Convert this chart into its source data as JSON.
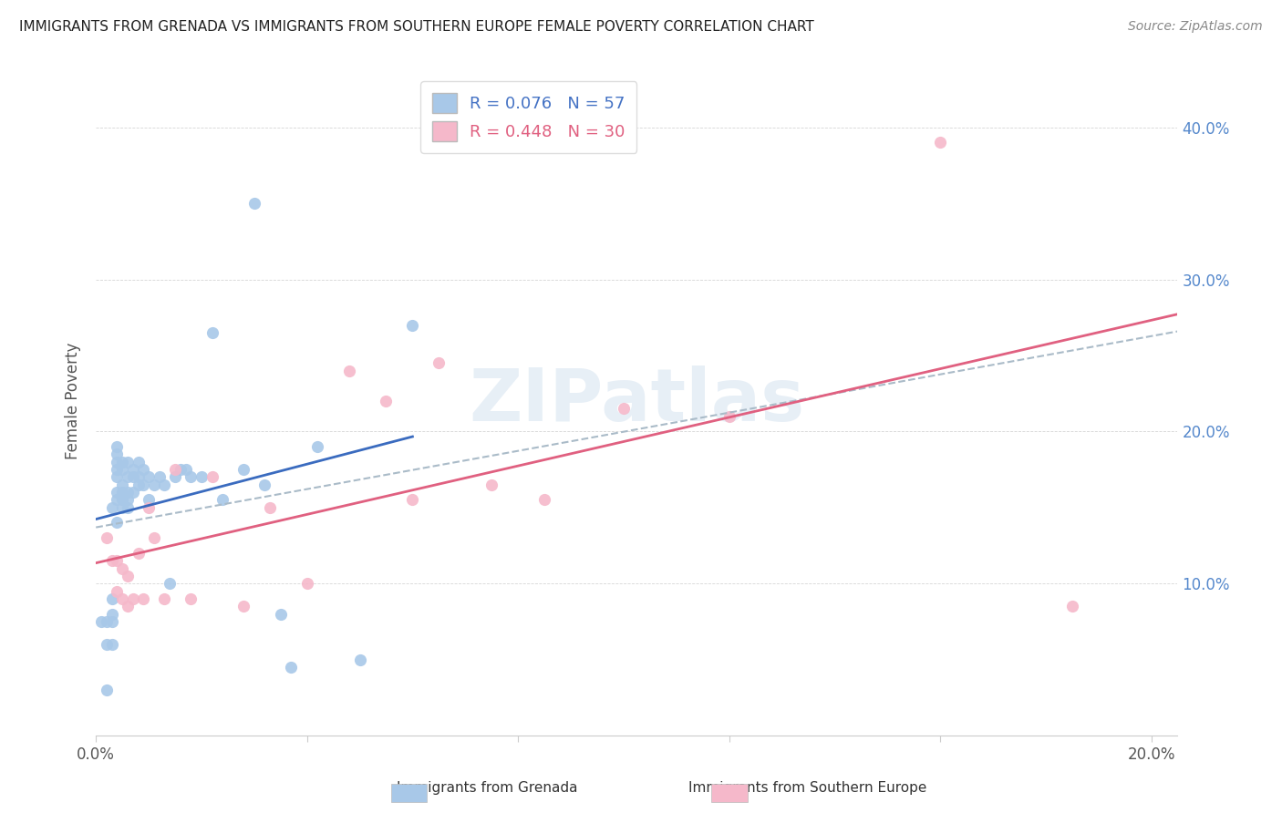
{
  "title": "IMMIGRANTS FROM GRENADA VS IMMIGRANTS FROM SOUTHERN EUROPE FEMALE POVERTY CORRELATION CHART",
  "source": "Source: ZipAtlas.com",
  "ylabel": "Female Poverty",
  "xlim": [
    0.0,
    0.205
  ],
  "ylim": [
    0.0,
    0.44
  ],
  "xticks": [
    0.0,
    0.04,
    0.08,
    0.12,
    0.16,
    0.2
  ],
  "yticks": [
    0.0,
    0.1,
    0.2,
    0.3,
    0.4
  ],
  "ytick_labels_right": [
    "",
    "10.0%",
    "20.0%",
    "30.0%",
    "40.0%"
  ],
  "grenada_R": 0.076,
  "grenada_N": 57,
  "southern_R": 0.448,
  "southern_N": 30,
  "grenada_color": "#a8c8e8",
  "southern_color": "#f5b8ca",
  "grenada_line_color": "#3a6bbf",
  "southern_line_color": "#e06080",
  "dash_line_color": "#aabbc8",
  "background_color": "#ffffff",
  "watermark": "ZIPatlas",
  "grenada_x": [
    0.001,
    0.002,
    0.002,
    0.002,
    0.003,
    0.003,
    0.003,
    0.003,
    0.003,
    0.004,
    0.004,
    0.004,
    0.004,
    0.004,
    0.004,
    0.004,
    0.004,
    0.005,
    0.005,
    0.005,
    0.005,
    0.005,
    0.005,
    0.006,
    0.006,
    0.006,
    0.006,
    0.006,
    0.007,
    0.007,
    0.007,
    0.008,
    0.008,
    0.008,
    0.009,
    0.009,
    0.01,
    0.01,
    0.011,
    0.012,
    0.013,
    0.014,
    0.015,
    0.016,
    0.017,
    0.018,
    0.02,
    0.022,
    0.024,
    0.028,
    0.03,
    0.032,
    0.035,
    0.037,
    0.042,
    0.05,
    0.06
  ],
  "grenada_y": [
    0.075,
    0.03,
    0.06,
    0.075,
    0.06,
    0.075,
    0.08,
    0.09,
    0.15,
    0.14,
    0.155,
    0.16,
    0.17,
    0.175,
    0.18,
    0.185,
    0.19,
    0.15,
    0.155,
    0.16,
    0.165,
    0.175,
    0.18,
    0.15,
    0.155,
    0.16,
    0.17,
    0.18,
    0.16,
    0.17,
    0.175,
    0.165,
    0.17,
    0.18,
    0.165,
    0.175,
    0.155,
    0.17,
    0.165,
    0.17,
    0.165,
    0.1,
    0.17,
    0.175,
    0.175,
    0.17,
    0.17,
    0.265,
    0.155,
    0.175,
    0.35,
    0.165,
    0.08,
    0.045,
    0.19,
    0.05,
    0.27
  ],
  "southern_x": [
    0.002,
    0.003,
    0.004,
    0.004,
    0.005,
    0.005,
    0.006,
    0.006,
    0.007,
    0.008,
    0.009,
    0.01,
    0.011,
    0.013,
    0.015,
    0.018,
    0.022,
    0.028,
    0.033,
    0.04,
    0.048,
    0.055,
    0.06,
    0.065,
    0.075,
    0.085,
    0.1,
    0.12,
    0.16,
    0.185
  ],
  "southern_y": [
    0.13,
    0.115,
    0.095,
    0.115,
    0.09,
    0.11,
    0.085,
    0.105,
    0.09,
    0.12,
    0.09,
    0.15,
    0.13,
    0.09,
    0.175,
    0.09,
    0.17,
    0.085,
    0.15,
    0.1,
    0.24,
    0.22,
    0.155,
    0.245,
    0.165,
    0.155,
    0.215,
    0.21,
    0.39,
    0.085
  ]
}
